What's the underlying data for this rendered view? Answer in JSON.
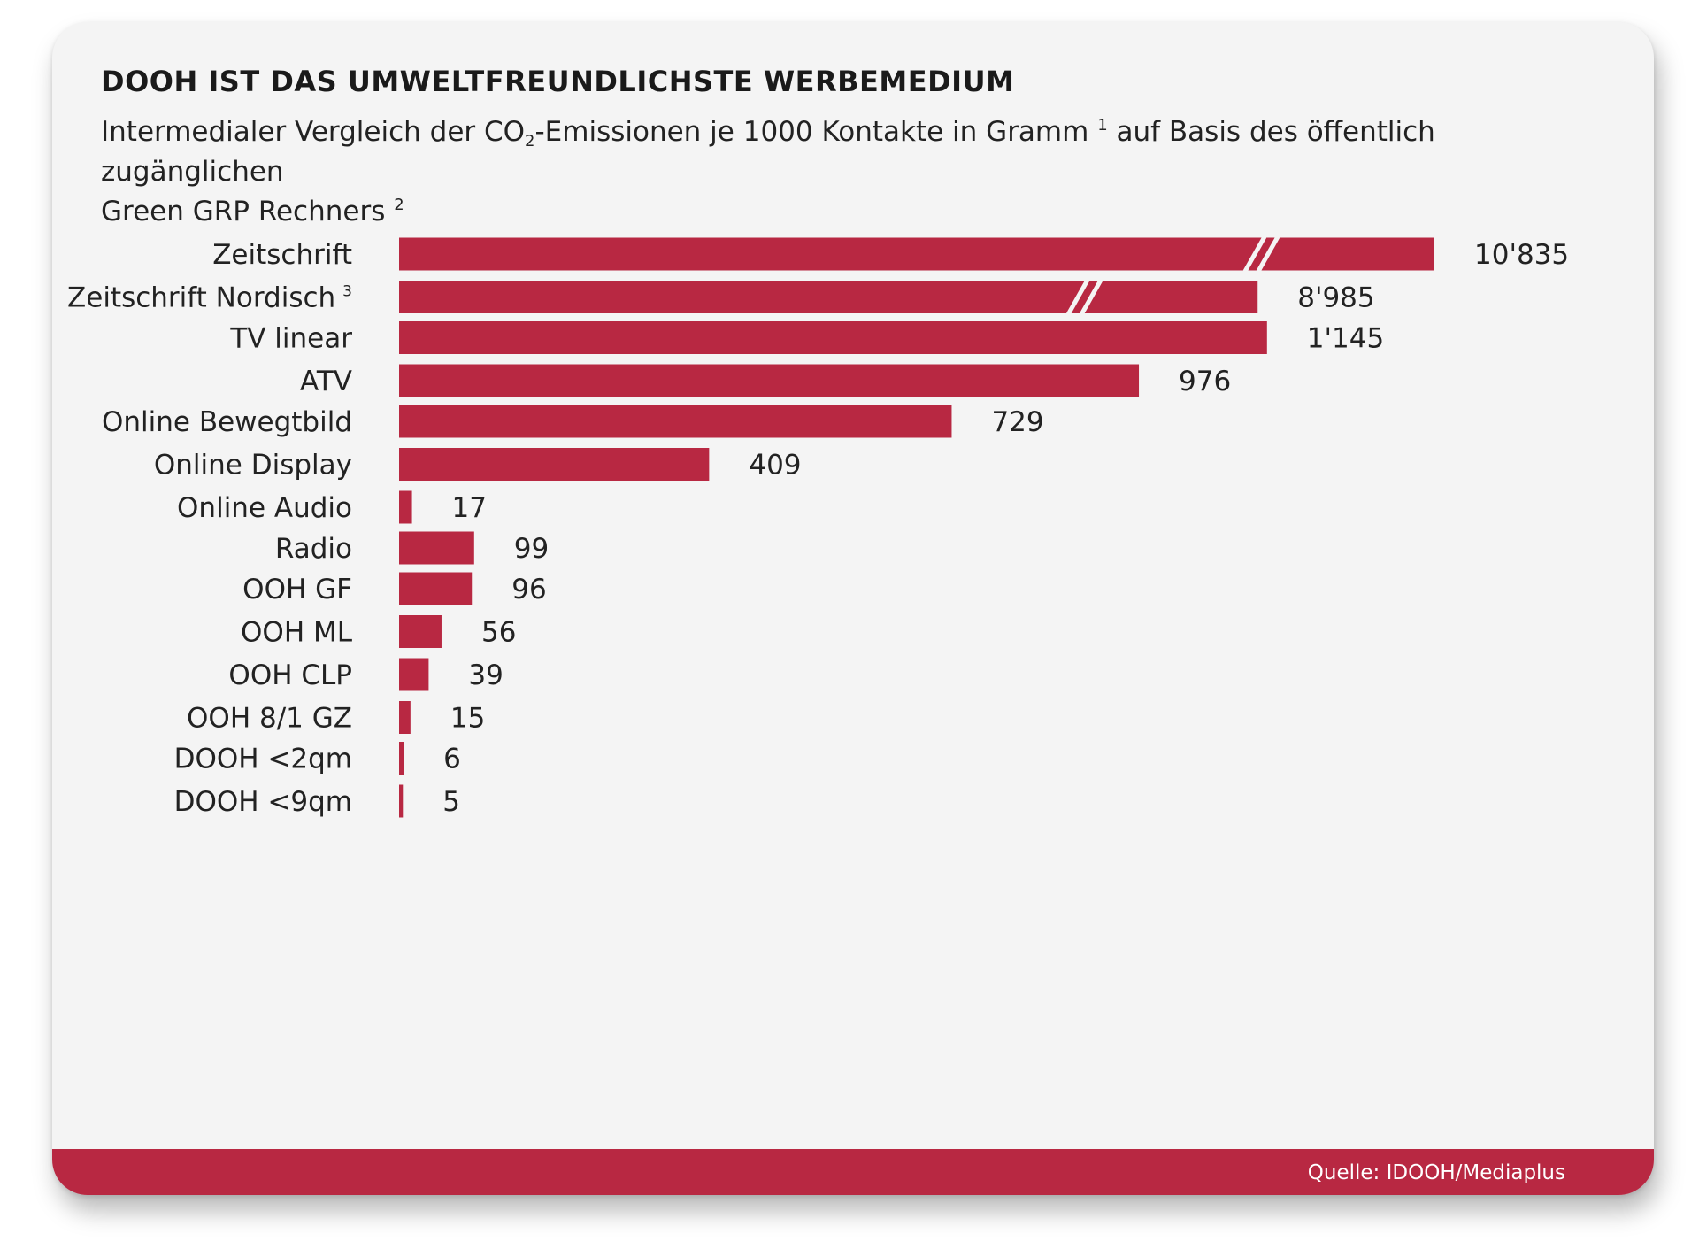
{
  "title": "DOOH IST DAS UMWELTFREUNDLICHSTE WERBEMEDIUM",
  "subtitle": {
    "part1": "Intermedialer Vergleich der CO",
    "sub": "2",
    "part2": "-Emissionen je 1000 Kontakte in Gramm ",
    "sup1": "1",
    "part3": " auf Basis des öffentlich zugänglichen",
    "line2": "Green GRP Rechners ",
    "sup2": "2"
  },
  "source": "Quelle: IDOOH/Mediaplus",
  "colors": {
    "bar": "#b82842",
    "card": "#f4f4f4",
    "text": "#222222"
  },
  "chart_data": {
    "type": "bar",
    "orientation": "horizontal",
    "title": "DOOH IST DAS UMWELTFREUNDLICHSTE WERBEMEDIUM",
    "unit": "Gramm CO2 je 1000 Kontakte",
    "axis_break_categories": [
      "Zeitschrift",
      "Zeitschrift Nordisch"
    ],
    "groups": [
      [
        {
          "label": "Zeitschrift",
          "sup": "",
          "value": 10835,
          "value_label": "10'835"
        },
        {
          "label": "Zeitschrift Nordisch",
          "sup": "3",
          "value": 8985,
          "value_label": "8'985"
        }
      ],
      [
        {
          "label": "TV linear",
          "sup": "",
          "value": 1145,
          "value_label": "1'145"
        },
        {
          "label": "ATV",
          "sup": "",
          "value": 976,
          "value_label": "976"
        }
      ],
      [
        {
          "label": "Online Bewegtbild",
          "sup": "",
          "value": 729,
          "value_label": "729"
        },
        {
          "label": "Online Display",
          "sup": "",
          "value": 409,
          "value_label": "409"
        },
        {
          "label": "Online Audio",
          "sup": "",
          "value": 17,
          "value_label": "17"
        }
      ],
      [
        {
          "label": "Radio",
          "sup": "",
          "value": 99,
          "value_label": "99"
        }
      ],
      [
        {
          "label": "OOH GF",
          "sup": "",
          "value": 96,
          "value_label": "96"
        },
        {
          "label": "OOH ML",
          "sup": "",
          "value": 56,
          "value_label": "56"
        },
        {
          "label": "OOH CLP",
          "sup": "",
          "value": 39,
          "value_label": "39"
        },
        {
          "label": "OOH 8/1 GZ",
          "sup": "",
          "value": 15,
          "value_label": "15"
        }
      ],
      [
        {
          "label": "DOOH <2qm",
          "sup": "",
          "value": 6,
          "value_label": "6"
        },
        {
          "label": "DOOH <9qm",
          "sup": "",
          "value": 5,
          "value_label": "5"
        }
      ]
    ]
  }
}
